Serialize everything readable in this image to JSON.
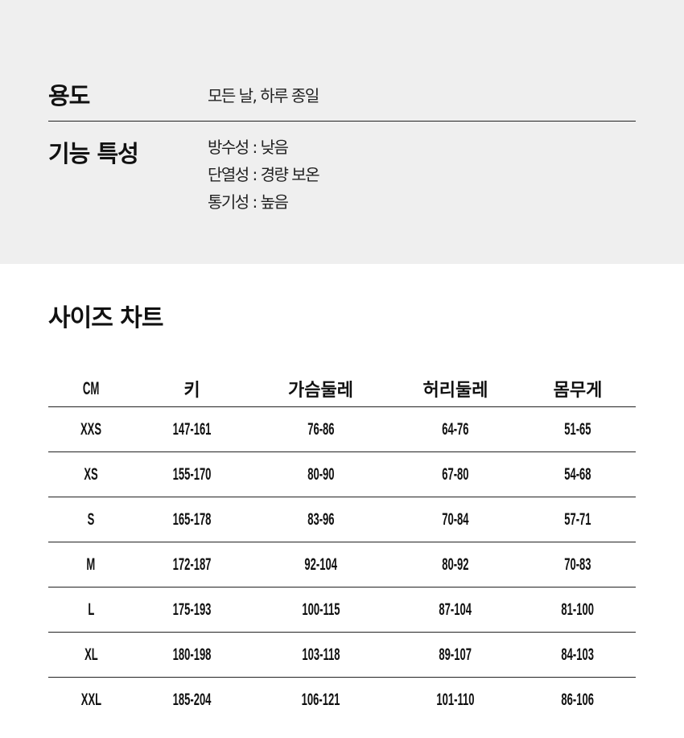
{
  "info": {
    "usage_label": "용도",
    "usage_value": "모든 날, 하루 종일",
    "features_label": "기능 특성",
    "features": [
      "방수성 : 낮음",
      "단열성 : 경량 보온",
      "통기성 : 높음"
    ]
  },
  "size_chart": {
    "title": "사이즈 차트",
    "headers": [
      "CM",
      "키",
      "가슴둘레",
      "허리둘레",
      "몸무게"
    ],
    "rows": [
      [
        "XXS",
        "147-161",
        "76-86",
        "64-76",
        "51-65"
      ],
      [
        "XS",
        "155-170",
        "80-90",
        "67-80",
        "54-68"
      ],
      [
        "S",
        "165-178",
        "83-96",
        "70-84",
        "57-71"
      ],
      [
        "M",
        "172-187",
        "92-104",
        "80-92",
        "70-83"
      ],
      [
        "L",
        "175-193",
        "100-115",
        "87-104",
        "81-100"
      ],
      [
        "XL",
        "180-198",
        "103-118",
        "89-107",
        "84-103"
      ],
      [
        "XXL",
        "185-204",
        "106-121",
        "101-110",
        "86-106"
      ]
    ]
  }
}
